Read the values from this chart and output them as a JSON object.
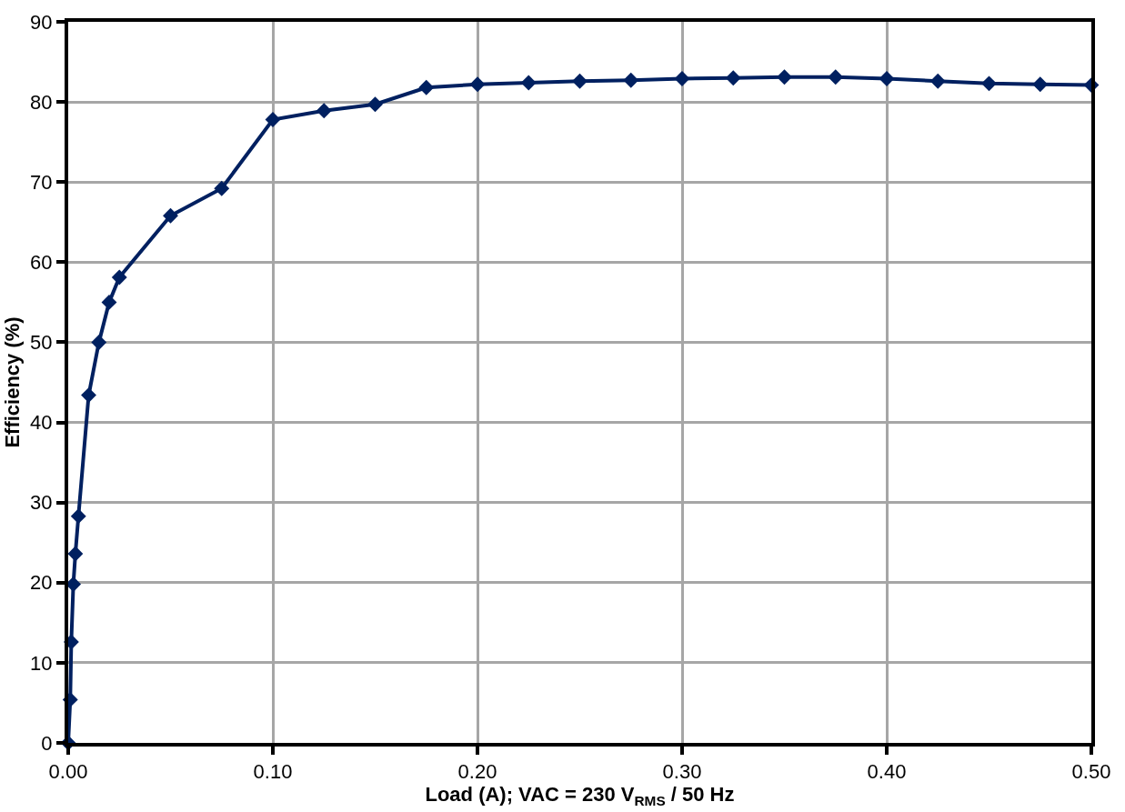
{
  "chart_data": {
    "type": "line",
    "xlabel": "Load (A); VAC = 230 V$_{RMS}$ / 50 Hz",
    "ylabel": "Efficiency (%)",
    "x": [
      0,
      0.001,
      0.0015,
      0.0025,
      0.0035,
      0.005,
      0.01,
      0.015,
      0.02,
      0.025,
      0.05,
      0.075,
      0.1,
      0.125,
      0.15,
      0.175,
      0.2,
      0.225,
      0.25,
      0.275,
      0.3,
      0.325,
      0.35,
      0.375,
      0.4,
      0.425,
      0.45,
      0.475,
      0.5
    ],
    "series": [
      {
        "color": "#002060",
        "values": [
          0,
          5.4,
          12.6,
          19.8,
          23.6,
          28.3,
          43.4,
          50,
          55,
          58.1,
          65.8,
          69.2,
          77.8,
          78.9,
          79.7,
          81.8,
          82.2,
          82.4,
          82.6,
          82.7,
          82.9,
          83.0,
          83.1,
          83.1,
          82.9,
          82.6,
          82.3,
          82.2,
          82.1
        ]
      }
    ],
    "xlim": [
      0,
      0.5
    ],
    "xticks": [
      {
        "value": 0,
        "label": "0.00"
      },
      {
        "value": 0.1,
        "label": "0.10"
      },
      {
        "value": 0.2,
        "label": "0.20"
      },
      {
        "value": 0.3,
        "label": "0.30"
      },
      {
        "value": 0.4,
        "label": "0.40"
      },
      {
        "value": 0.5,
        "label": "0.50"
      }
    ],
    "ylim": [
      0,
      90
    ],
    "yticks": [
      0,
      10,
      20,
      30,
      40,
      50,
      60,
      70,
      80,
      90
    ],
    "grid": true,
    "marker": "diamond",
    "line_style": "solid"
  }
}
